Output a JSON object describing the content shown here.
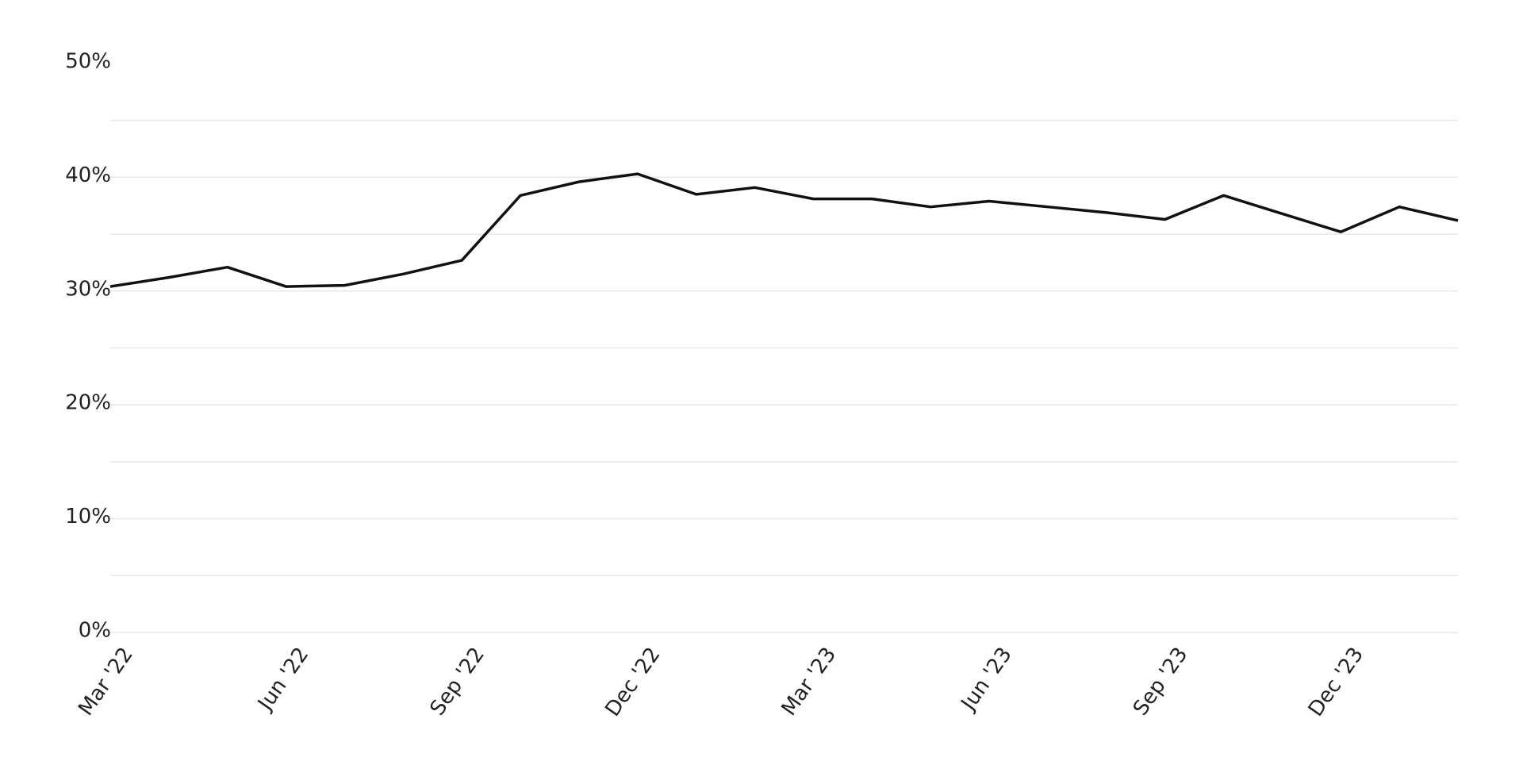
{
  "chart_data": {
    "type": "line",
    "categories": [
      "Mar '22",
      null,
      null,
      "Jun '22",
      null,
      null,
      "Sep '22",
      null,
      null,
      "Dec '22",
      null,
      null,
      "Mar '23",
      null,
      null,
      "Jun '23",
      null,
      null,
      "Sep '23",
      null,
      null,
      "Dec '23",
      null,
      null
    ],
    "series": [
      {
        "color": "#111111",
        "values": [
          30.4,
          31.2,
          32.1,
          30.4,
          30.5,
          31.5,
          32.7,
          38.4,
          39.6,
          40.3,
          38.5,
          39.1,
          38.1,
          38.1,
          37.4,
          37.9,
          37.4,
          36.9,
          36.3,
          38.4,
          36.8,
          35.2,
          37.4,
          36.2
        ]
      }
    ],
    "ylim": [
      0,
      50
    ],
    "yticks": [
      {
        "value": 0,
        "label": "0%"
      },
      {
        "value": 10,
        "label": "10%"
      },
      {
        "value": 20,
        "label": "20%"
      },
      {
        "value": 30,
        "label": "30%"
      },
      {
        "value": 40,
        "label": "40%"
      },
      {
        "value": 50,
        "label": "50%"
      }
    ],
    "minor_yticks": [
      5,
      15,
      25,
      35,
      45
    ],
    "grid": true
  }
}
